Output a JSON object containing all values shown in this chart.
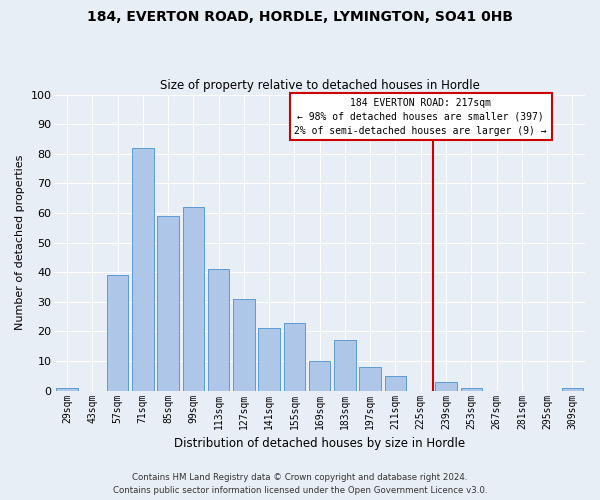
{
  "title": "184, EVERTON ROAD, HORDLE, LYMINGTON, SO41 0HB",
  "subtitle": "Size of property relative to detached houses in Hordle",
  "xlabel": "Distribution of detached houses by size in Hordle",
  "ylabel": "Number of detached properties",
  "bar_labels": [
    "29sqm",
    "43sqm",
    "57sqm",
    "71sqm",
    "85sqm",
    "99sqm",
    "113sqm",
    "127sqm",
    "141sqm",
    "155sqm",
    "169sqm",
    "183sqm",
    "197sqm",
    "211sqm",
    "225sqm",
    "239sqm",
    "253sqm",
    "267sqm",
    "281sqm",
    "295sqm",
    "309sqm"
  ],
  "bar_values": [
    1,
    0,
    39,
    82,
    59,
    62,
    41,
    31,
    21,
    23,
    10,
    17,
    8,
    5,
    0,
    3,
    1,
    0,
    0,
    0,
    1
  ],
  "bar_color": "#aec6e8",
  "bar_edge_color": "#5b9bd5",
  "ylim": [
    0,
    100
  ],
  "yticks": [
    0,
    10,
    20,
    30,
    40,
    50,
    60,
    70,
    80,
    90,
    100
  ],
  "vline_x": 14.5,
  "vline_color": "#cc0000",
  "annotation_title": "184 EVERTON ROAD: 217sqm",
  "annotation_line1": "← 98% of detached houses are smaller (397)",
  "annotation_line2": "2% of semi-detached houses are larger (9) →",
  "annotation_box_color": "#cc0000",
  "background_color": "#e8eef5",
  "footer1": "Contains HM Land Registry data © Crown copyright and database right 2024.",
  "footer2": "Contains public sector information licensed under the Open Government Licence v3.0."
}
